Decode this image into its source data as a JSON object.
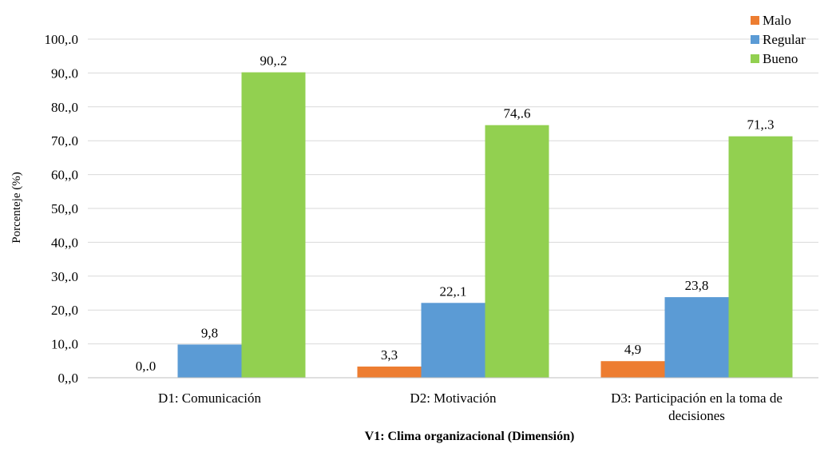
{
  "chart_data": {
    "type": "bar",
    "title": "",
    "xlabel": "V1: Clima organizacional (Dimensión)",
    "ylabel": "Porcenteje (%)",
    "ylim": [
      0,
      100
    ],
    "ytick_labels": [
      "0,,0",
      "10,.0",
      "20,,0",
      "30,.0",
      "40,,0",
      "50,,0",
      "60,,0",
      "70,.0",
      "80.,0",
      "90,.0",
      "100,.0"
    ],
    "categories": [
      [
        "D1: Comunicación"
      ],
      [
        "D2: Motivación"
      ],
      [
        "D3: Participación en la toma de",
        "decisiones"
      ]
    ],
    "series": [
      {
        "name": "Malo",
        "color": "#ED7D31",
        "values": [
          0.0,
          3.3,
          4.9
        ],
        "labels": [
          "0,.0",
          "3,3",
          "4,9"
        ]
      },
      {
        "name": "Regular",
        "color": "#5B9BD5",
        "values": [
          9.8,
          22.1,
          23.8
        ],
        "labels": [
          "9,8",
          "22,.1",
          "23,8"
        ]
      },
      {
        "name": "Bueno",
        "color": "#92D050",
        "values": [
          90.2,
          74.6,
          71.3
        ],
        "labels": [
          "90,.2",
          "74,.6",
          "71,.3"
        ]
      }
    ],
    "legend": "top-right",
    "grid": true
  }
}
